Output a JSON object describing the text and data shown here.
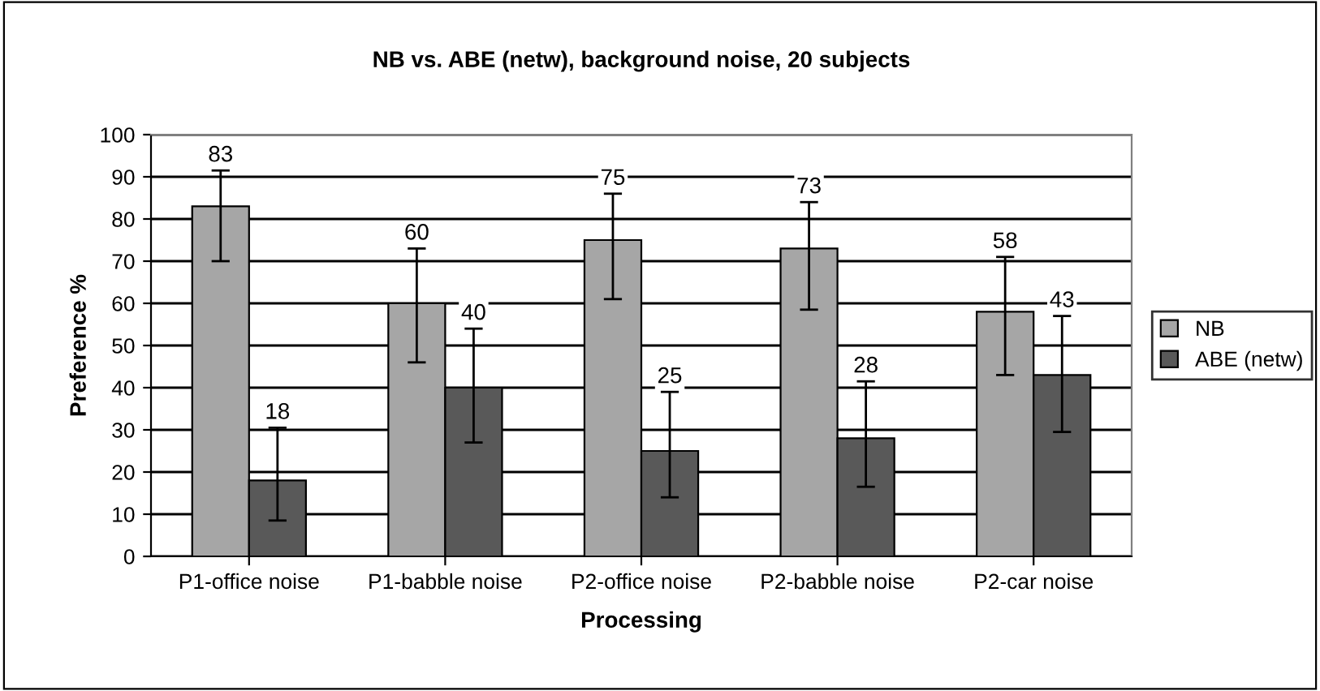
{
  "chart_data": {
    "type": "bar",
    "title": "NB vs. ABE (netw), background noise, 20 subjects",
    "xlabel": "Processing",
    "ylabel": "Preference %",
    "categories": [
      "P1-office noise",
      "P1-babble noise",
      "P2-office noise",
      "P2-babble noise",
      "P2-car noise"
    ],
    "series": [
      {
        "name": "NB",
        "color": "#a6a6a6",
        "values": [
          83,
          60,
          75,
          73,
          58
        ],
        "errors": [
          [
            70,
            91.5
          ],
          [
            46,
            73
          ],
          [
            61,
            86
          ],
          [
            58.5,
            84
          ],
          [
            43,
            71
          ]
        ]
      },
      {
        "name": "ABE (netw)",
        "color": "#595959",
        "values": [
          18,
          40,
          25,
          28,
          43
        ],
        "errors": [
          [
            8.5,
            30.5
          ],
          [
            27,
            54
          ],
          [
            14,
            39
          ],
          [
            16.5,
            41.5
          ],
          [
            29.5,
            57
          ]
        ]
      }
    ],
    "ylim": [
      0,
      100
    ],
    "yticks": [
      0,
      10,
      20,
      30,
      40,
      50,
      60,
      70,
      80,
      90,
      100
    ],
    "grid": "y",
    "legend": "right",
    "data_labels": true
  }
}
